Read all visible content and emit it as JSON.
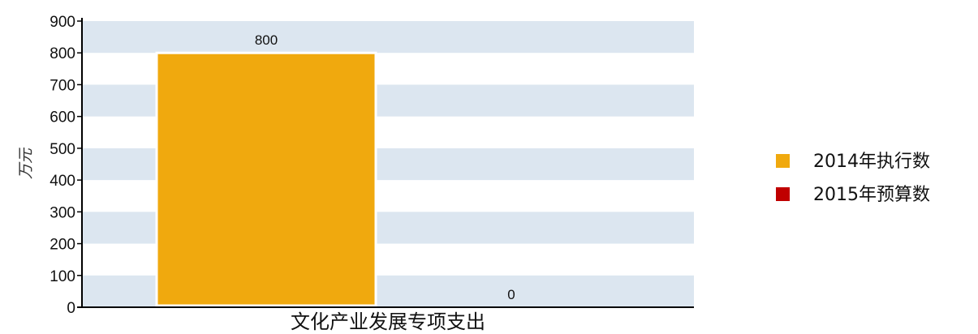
{
  "chart_data": {
    "type": "bar",
    "categories": [
      "文化产业发展专项支出"
    ],
    "series": [
      {
        "name": "2014年执行数",
        "values": [
          800
        ],
        "color": "#f0a90e"
      },
      {
        "name": "2015年预算数",
        "values": [
          0
        ],
        "color": "#c00000"
      }
    ],
    "ylabel": "万元",
    "ylim": [
      0,
      900
    ],
    "yticks": [
      0,
      100,
      200,
      300,
      400,
      500,
      600,
      700,
      800,
      900
    ],
    "data_labels": [
      "800",
      "0"
    ],
    "grid": "alternating horizontal bands",
    "band_color": "#dce6f0",
    "legend": "right"
  }
}
